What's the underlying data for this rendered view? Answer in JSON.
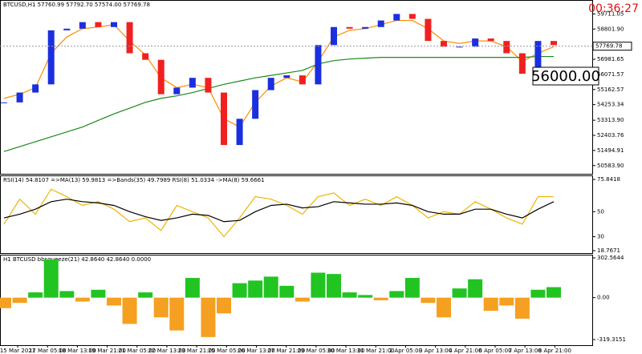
{
  "chart_data": [
    {
      "type": "price",
      "title": "BTCUSD,H1 57760.99 57792.70 57574.00 57769.78",
      "timer": "00:36:27",
      "annotation": "56000.00",
      "current_price": 57769.78,
      "xlim": [
        0,
        35
      ],
      "ylim": [
        50090,
        60550
      ],
      "up_color": "#1a2fe0",
      "down_color": "#f02020",
      "yticks": [
        {
          "value": 59711.05,
          "label": "59711.05"
        },
        {
          "value": 58801.9,
          "label": "58801.90"
        },
        {
          "value": 56981.65,
          "label": "56981.65"
        },
        {
          "value": 56071.57,
          "label": "56071.57"
        },
        {
          "value": 55162.57,
          "label": "55162.57"
        },
        {
          "value": 54253.34,
          "label": "54253.34"
        },
        {
          "value": 53313.9,
          "label": "53313.90"
        },
        {
          "value": 52403.76,
          "label": "52403.76"
        },
        {
          "value": 51494.91,
          "label": "51494.91"
        },
        {
          "value": 50583.9,
          "label": "50583.90"
        }
      ],
      "values": [
        54387,
        54979,
        55472,
        58725,
        58824,
        59218,
        58923,
        59218,
        57345,
        56951,
        54880,
        55275,
        55866,
        54979,
        51823,
        53401,
        55126,
        55866,
        56014,
        55472,
        57838,
        58923,
        58824,
        58923,
        59317,
        59711,
        59415,
        58084,
        57739,
        57739,
        58232,
        58084,
        57345,
        56112,
        58084,
        57838
      ],
      "series": [
        {
          "color": "#ff8c00",
          "values": [
            54633,
            54880,
            55275,
            57345,
            58331,
            58824,
            58923,
            59070,
            58084,
            57246,
            55866,
            55275,
            55472,
            55275,
            53401,
            52908,
            54387,
            55373,
            55866,
            55619,
            56852,
            58331,
            58725,
            58824,
            59070,
            59317,
            59317,
            58824,
            58084,
            57936,
            58084,
            58084,
            57739,
            56852,
            57345,
            57739
          ]
        },
        {
          "color": "#1a8a1a",
          "values": [
            51429,
            51725,
            52021,
            52316,
            52612,
            52908,
            53302,
            53697,
            54042,
            54387,
            54633,
            54781,
            54979,
            55225,
            55472,
            55669,
            55866,
            56014,
            56162,
            56310,
            56704,
            56901,
            56999,
            57049,
            57098,
            57098,
            57098,
            57098,
            57098,
            57098,
            57098,
            57098,
            57098,
            57098,
            57148,
            57148
          ]
        }
      ]
    },
    {
      "type": "oscillator",
      "title": "RSI(14) 54.8107 =>MA(13) 59.9813 =>Bands(35) 49.7989 RSI(8) 51.0334 ->MA(8) 59.6661",
      "xlim": [
        0,
        35
      ],
      "ylim": [
        16.84,
        77.12
      ],
      "yticks": [
        75.8418,
        50,
        30,
        18.7671
      ],
      "series": [
        {
          "color": "#f0b400",
          "values": [
            40,
            60,
            48,
            68,
            62,
            55,
            58,
            52,
            42,
            45,
            35,
            55,
            50,
            45,
            30,
            45,
            62,
            60,
            55,
            48,
            62,
            65,
            55,
            60,
            55,
            62,
            55,
            45,
            50,
            48,
            58,
            52,
            45,
            40,
            62,
            62
          ]
        },
        {
          "color": "#000000",
          "values": [
            45,
            48,
            52,
            58,
            60,
            58,
            57,
            55,
            50,
            46,
            43,
            45,
            48,
            47,
            42,
            43,
            50,
            55,
            56,
            53,
            54,
            58,
            57,
            56,
            56,
            57,
            55,
            50,
            48,
            48,
            52,
            52,
            48,
            45,
            52,
            58
          ]
        }
      ]
    },
    {
      "type": "histogram",
      "title": "H1 BTCUSD bbsqueeze(21) 42.8640 42.8640 0.0000",
      "xlim": [
        0,
        35
      ],
      "ylim": [
        -368.09,
        326.95
      ],
      "positive_color": "#22c422",
      "negative_color": "#f5a020",
      "yticks": [
        302.5644,
        {
          "value": 0,
          "label": "0.00"
        },
        -319.3151
      ],
      "values": [
        -80,
        -40,
        40,
        290,
        50,
        -30,
        60,
        -60,
        -200,
        40,
        -150,
        -250,
        150,
        -300,
        -120,
        110,
        130,
        160,
        90,
        -30,
        190,
        180,
        40,
        20,
        -20,
        50,
        150,
        -40,
        -150,
        70,
        140,
        -100,
        -60,
        -160,
        60,
        80
      ],
      "xticks": [
        {
          "value": 0.87,
          "label": "15 Mar 2021"
        },
        {
          "value": 2.77,
          "label": "17 Mar 05:00"
        },
        {
          "value": 4.67,
          "label": "18 Mar 13:00"
        },
        {
          "value": 6.57,
          "label": "19 Mar 21:00"
        },
        {
          "value": 8.47,
          "label": "21 Mar 05:00"
        },
        {
          "value": 10.37,
          "label": "22 Mar 13:00"
        },
        {
          "value": 12.27,
          "label": "23 Mar 21:00"
        },
        {
          "value": 14.17,
          "label": "25 Mar 05:00"
        },
        {
          "value": 16.07,
          "label": "26 Mar 13:00"
        },
        {
          "value": 17.97,
          "label": "27 Mar 21:00"
        },
        {
          "value": 19.87,
          "label": "29 Mar 05:00"
        },
        {
          "value": 21.77,
          "label": "30 Mar 13:00"
        },
        {
          "value": 23.67,
          "label": "31 Mar 21:00"
        },
        {
          "value": 25.57,
          "label": "2 Apr 05:00"
        },
        {
          "value": 27.47,
          "label": "3 Apr 13:00"
        },
        {
          "value": 29.37,
          "label": "4 Apr 21:00"
        },
        {
          "value": 31.27,
          "label": "6 Apr 05:00"
        },
        {
          "value": 33.17,
          "label": "7 Apr 13:00"
        },
        {
          "value": 35.07,
          "label": "8 Apr 21:00"
        }
      ]
    }
  ]
}
